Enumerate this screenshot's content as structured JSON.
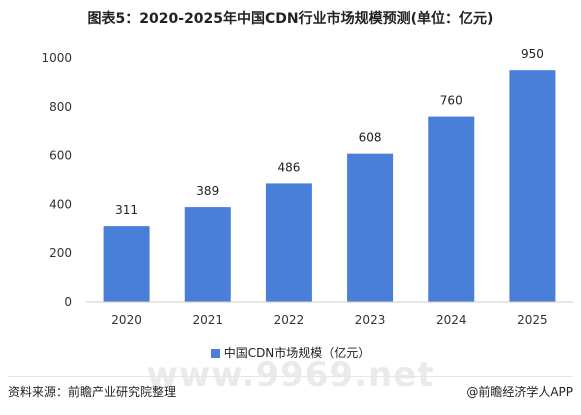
{
  "title": "图表5：2020-2025年中国CDN行业市场规模预测(单位：亿元)",
  "legend_label": "中国CDN市场规模（亿元）",
  "footer": {
    "source": "资料来源：前瞻产业研究院整理",
    "brand": "@前瞻经济学人APP"
  },
  "watermark": "www.9969.net",
  "colors": {
    "bar": "#4a7fd9",
    "axis": "#cccccc",
    "text": "#333333"
  },
  "chart_data": {
    "type": "bar",
    "categories": [
      "2020",
      "2021",
      "2022",
      "2023",
      "2024",
      "2025"
    ],
    "series": [
      {
        "name": "中国CDN市场规模（亿元）",
        "values": [
          311,
          389,
          486,
          608,
          760,
          950
        ]
      }
    ],
    "y_ticks": [
      0,
      200,
      400,
      600,
      800,
      1000
    ],
    "ylim": [
      0,
      1000
    ],
    "grid": false,
    "legend_position": "bottom"
  }
}
